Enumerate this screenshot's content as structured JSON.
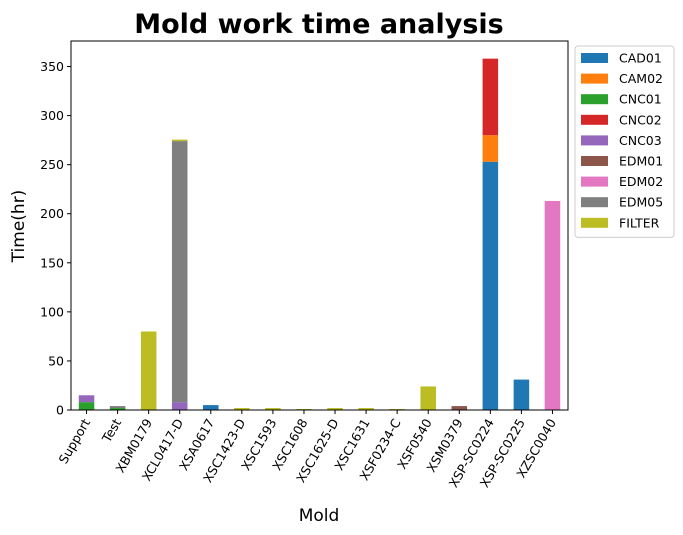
{
  "chart_data": {
    "type": "bar",
    "stacked": true,
    "title": "Mold work time analysis",
    "xlabel": "Mold",
    "ylabel": "Time(hr)",
    "ylim": [
      0,
      376
    ],
    "yticks": [
      0,
      50,
      100,
      150,
      200,
      250,
      300,
      350
    ],
    "legend_position": "outside-top-right",
    "grid": false,
    "categories": [
      "Support",
      "Test",
      "XBM0179",
      "XCL0417-D",
      "XSA0617",
      "XSC1423-D",
      "XSC1593",
      "XSC1608",
      "XSC1625-D",
      "XSC1631",
      "XSF0234-C",
      "XSF0540",
      "XSM0379",
      "XSP-SC0224",
      "XSP-SC0225",
      "XZSC0040"
    ],
    "series": [
      {
        "name": "CAD01",
        "color": "#1f77b4",
        "values": [
          0,
          0,
          0,
          0,
          5,
          0,
          0,
          0,
          0,
          0,
          0,
          0,
          0,
          253,
          31,
          0
        ]
      },
      {
        "name": "CAM02",
        "color": "#ff7f0e",
        "values": [
          0,
          0,
          0,
          0,
          0,
          0,
          0,
          0,
          0,
          0,
          0,
          0,
          0,
          27,
          0,
          0
        ]
      },
      {
        "name": "CNC01",
        "color": "#2ca02c",
        "values": [
          8,
          2,
          0,
          0,
          0,
          0,
          0,
          0,
          0,
          0,
          0,
          0,
          0,
          0,
          0,
          0
        ]
      },
      {
        "name": "CNC02",
        "color": "#d62728",
        "values": [
          0,
          0,
          0,
          0,
          0,
          0,
          0,
          0,
          0,
          0,
          0,
          0,
          0,
          78,
          0,
          0
        ]
      },
      {
        "name": "CNC03",
        "color": "#9467bd",
        "values": [
          7,
          0,
          0,
          8,
          0,
          0,
          0,
          0,
          0,
          0,
          0,
          0,
          0,
          0,
          0,
          0
        ]
      },
      {
        "name": "EDM01",
        "color": "#8c564b",
        "values": [
          0,
          0,
          0,
          0,
          0,
          0,
          0,
          0,
          0,
          0,
          0,
          0,
          4,
          0,
          0,
          0
        ]
      },
      {
        "name": "EDM02",
        "color": "#e377c2",
        "values": [
          0,
          0,
          0,
          0,
          0,
          0,
          0,
          0,
          0,
          0,
          0,
          0,
          0,
          0,
          0,
          213
        ]
      },
      {
        "name": "EDM05",
        "color": "#7f7f7f",
        "values": [
          0,
          2,
          0,
          266,
          0,
          0,
          0,
          0,
          0,
          0,
          0,
          0,
          0,
          0,
          0,
          0
        ]
      },
      {
        "name": "FILTER",
        "color": "#bcbd22",
        "values": [
          0,
          0,
          80,
          1.5,
          0,
          2,
          2,
          1,
          2,
          2,
          1,
          24,
          0,
          0,
          0,
          0
        ]
      }
    ]
  }
}
